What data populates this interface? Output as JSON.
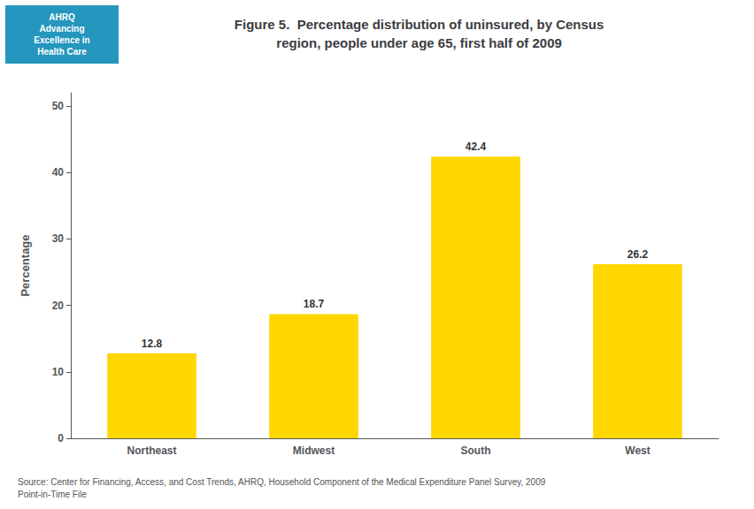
{
  "chart_data": {
    "type": "bar",
    "title": "Figure 5.  Percentage distribution of uninsured, by Census\nregion, people under age 65, first half of 2009",
    "categories": [
      "Northeast",
      "Midwest",
      "South",
      "West"
    ],
    "values": [
      12.8,
      18.7,
      42.4,
      26.2
    ],
    "color": "#FFD700",
    "ylabel": "Percentage",
    "ylim": [
      0,
      52
    ],
    "yticks": [
      0,
      10,
      20,
      30,
      40,
      50
    ],
    "grid": false,
    "data_labels": true,
    "annotations": [
      "AHRQ\nAdvancing\nExcellence in\nHealth Care",
      "Source: Center for Financing, Access, and Cost Trends, AHRQ, Household Component of the Medical Expenditure Panel Survey, 2009\nPoint-in-Time File"
    ]
  }
}
